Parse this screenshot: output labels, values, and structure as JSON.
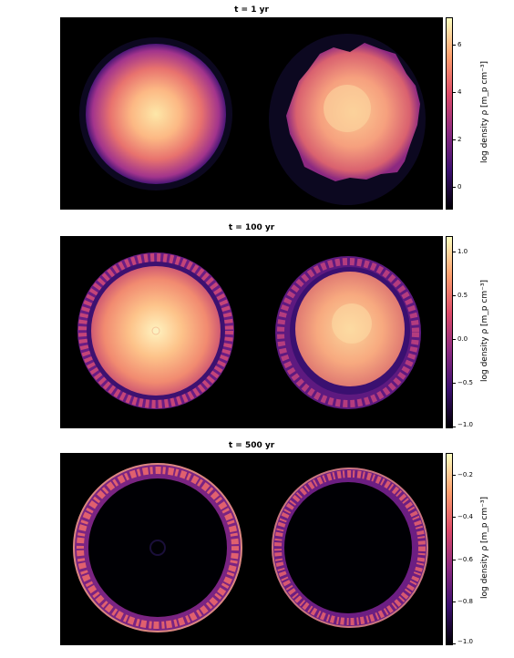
{
  "panels": [
    {
      "title": "t = 1 yr",
      "colorbar": {
        "label": "log density ρ [m_p cm⁻³]",
        "ticks": [
          "6",
          "4",
          "2",
          "0"
        ]
      }
    },
    {
      "title": "t = 100 yr",
      "colorbar": {
        "label": "log density ρ [m_p cm⁻³]",
        "ticks": [
          "1.0",
          "0.5",
          "0.0",
          "−0.5",
          "−1.0"
        ]
      }
    },
    {
      "title": "t = 500 yr",
      "colorbar": {
        "label": "log density ρ [m_p cm⁻³]",
        "ticks": [
          "−0.2",
          "−0.4",
          "−0.6",
          "−0.8",
          "−1.0"
        ]
      }
    }
  ],
  "colormap": [
    "#000004",
    "#3b0f70",
    "#8c2981",
    "#de4968",
    "#fe9f6d",
    "#fcfdbf"
  ]
}
